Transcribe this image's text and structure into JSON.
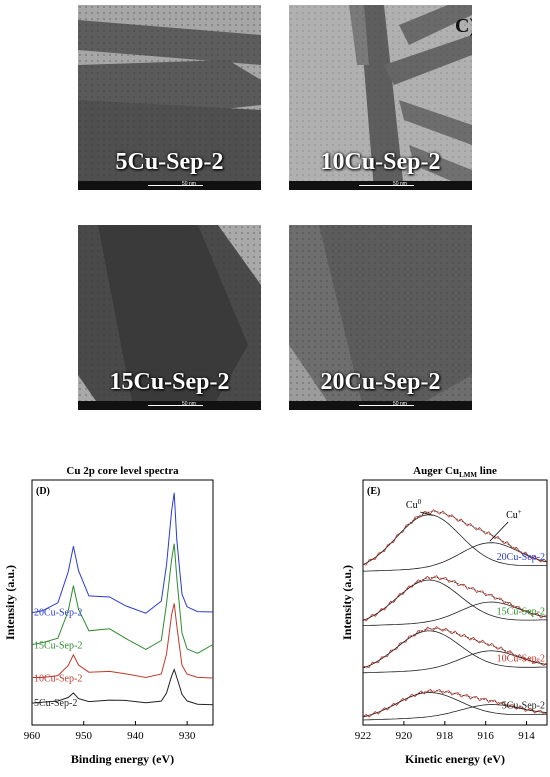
{
  "tem_panels": {
    "panel_letter": "C)",
    "scale_label": "50 nm",
    "items": [
      {
        "label": "5Cu-Sep-2"
      },
      {
        "label": "10Cu-Sep-2"
      },
      {
        "label": "15Cu-Sep-2"
      },
      {
        "label": "20Cu-Sep-2"
      }
    ]
  },
  "chart_data": [
    {
      "type": "line",
      "panel": "(D)",
      "title": "Cu 2p core level spectra",
      "xlabel": "Binding energy (eV)",
      "ylabel": "Intensity (a.u.)",
      "xlim": [
        960,
        925
      ],
      "x_ticks": [
        960,
        950,
        940,
        930
      ],
      "series": [
        {
          "name": "5Cu-Sep-2",
          "color": "#222222",
          "x": [
            962,
            958,
            955,
            953,
            952,
            951,
            949,
            945,
            942,
            938,
            935,
            934,
            933,
            932.5,
            932,
            931,
            930,
            928,
            925
          ],
          "y": [
            0.4,
            0.4,
            0.42,
            0.5,
            0.6,
            0.5,
            0.43,
            0.44,
            0.43,
            0.4,
            0.45,
            0.6,
            0.9,
            1.0,
            0.85,
            0.55,
            0.45,
            0.4,
            0.38
          ]
        },
        {
          "name": "10Cu-Sep-2",
          "color": "#c0392b",
          "x": [
            962,
            958,
            955,
            953,
            952,
            951,
            949,
            945,
            942,
            938,
            935,
            934,
            933,
            932.5,
            932,
            931,
            930,
            928,
            925
          ],
          "y": [
            0.85,
            0.85,
            0.9,
            1.1,
            1.3,
            1.1,
            0.95,
            0.96,
            0.93,
            0.88,
            0.95,
            1.3,
            2.0,
            2.2,
            1.8,
            1.1,
            0.95,
            0.88,
            0.85
          ]
        },
        {
          "name": "15Cu-Sep-2",
          "color": "#2e8b2e",
          "x": [
            962,
            958,
            955,
            953,
            952,
            951,
            949,
            945,
            942,
            938,
            935,
            934,
            933,
            932.5,
            932,
            931,
            930,
            928,
            925
          ],
          "y": [
            1.45,
            1.5,
            1.6,
            2.1,
            2.55,
            2.1,
            1.7,
            1.75,
            1.6,
            1.4,
            1.55,
            2.2,
            3.0,
            3.3,
            2.7,
            1.7,
            1.4,
            1.3,
            1.45
          ]
        },
        {
          "name": "20Cu-Sep-2",
          "color": "#2a3bd1",
          "x": [
            962,
            958,
            955,
            953,
            952,
            951,
            949,
            945,
            942,
            938,
            935,
            934,
            933,
            932.5,
            932,
            931,
            930,
            928,
            925
          ],
          "y": [
            2.05,
            2.1,
            2.25,
            2.8,
            3.25,
            2.8,
            2.35,
            2.35,
            2.2,
            2.05,
            2.25,
            2.9,
            3.9,
            4.25,
            3.4,
            2.4,
            2.15,
            2.05,
            2.05
          ]
        }
      ]
    },
    {
      "type": "line",
      "panel": "(E)",
      "title": "Auger Cu",
      "title_sub": "LMM",
      "title_tail": " line",
      "xlabel": "Kinetic energy (eV)",
      "ylabel": "Intensity (a.u.)",
      "xlim": [
        922,
        913
      ],
      "x_ticks": [
        922,
        920,
        918,
        916,
        914
      ],
      "annotations": [
        {
          "text": "Cu",
          "sup": "0"
        },
        {
          "text": "Cu",
          "sup": "+"
        }
      ],
      "series": [
        {
          "name": "5Cu-Sep-2",
          "label_color": "#222222",
          "offset": 0.0,
          "peak": 0.35
        },
        {
          "name": "10Cu-Sep-2",
          "label_color": "#c0392b",
          "offset": 0.65,
          "peak": 0.55
        },
        {
          "name": "15Cu-Sep-2",
          "label_color": "#2e8b2e",
          "offset": 1.3,
          "peak": 0.6
        },
        {
          "name": "20Cu-Sep-2",
          "label_color": "#2a3bd1",
          "offset": 2.05,
          "peak": 0.75
        }
      ]
    }
  ]
}
